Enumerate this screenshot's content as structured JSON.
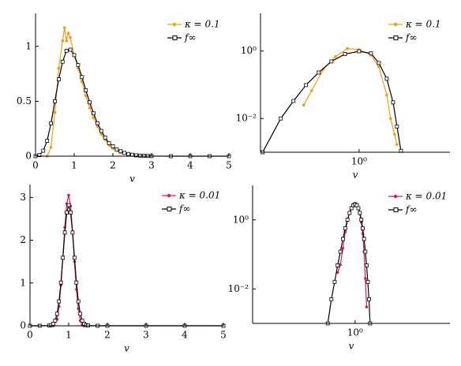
{
  "chart_data": [
    {
      "type": "line",
      "xlabel": "v",
      "xlim": [
        0,
        5
      ],
      "ylim": [
        0,
        1.3
      ],
      "xticks": [
        0,
        1,
        2,
        3,
        4,
        5
      ],
      "yticks": [
        0,
        0.5,
        1
      ],
      "legend": "upper right",
      "series": [
        {
          "name": "κ = 0.1",
          "color": "#f39c12",
          "marker": "o",
          "x": [
            0,
            0.3,
            0.4,
            0.5,
            0.6,
            0.7,
            0.75,
            0.8,
            0.85,
            0.9,
            1.0,
            1.1,
            1.2,
            1.3,
            1.4,
            1.5,
            1.6,
            1.7,
            1.8,
            1.9,
            2.0,
            2.2,
            2.4,
            2.6,
            2.8,
            3.0
          ],
          "values": [
            0,
            0,
            0.08,
            0.4,
            0.8,
            1.05,
            1.17,
            1.05,
            1.12,
            1.08,
            0.92,
            0.8,
            0.68,
            0.55,
            0.44,
            0.35,
            0.27,
            0.2,
            0.15,
            0.1,
            0.07,
            0.03,
            0.01,
            0.002,
            0,
            0
          ]
        },
        {
          "name": "f∞",
          "color": "#000000",
          "marker": "s",
          "x": [
            0,
            0.1,
            0.2,
            0.3,
            0.4,
            0.5,
            0.6,
            0.7,
            0.8,
            0.9,
            1.0,
            1.1,
            1.2,
            1.3,
            1.4,
            1.5,
            1.6,
            1.7,
            1.8,
            1.9,
            2.0,
            2.1,
            2.2,
            2.3,
            2.4,
            2.5,
            2.6,
            2.7,
            2.8,
            2.9,
            3.0,
            3.5,
            4,
            4.5,
            5
          ],
          "values": [
            0,
            0.01,
            0.05,
            0.14,
            0.3,
            0.5,
            0.7,
            0.86,
            0.96,
            0.97,
            0.92,
            0.83,
            0.72,
            0.6,
            0.49,
            0.39,
            0.3,
            0.23,
            0.17,
            0.12,
            0.09,
            0.06,
            0.045,
            0.03,
            0.02,
            0.013,
            0.008,
            0.005,
            0.003,
            0.002,
            0.001,
            0,
            0,
            0,
            0
          ]
        }
      ]
    },
    {
      "type": "line",
      "xlabel": "v",
      "xscale": "log",
      "yscale": "log",
      "xlim": [
        0.055,
        14.5
      ],
      "ylim": [
        0.001,
        13
      ],
      "xticks": [
        {
          "value": 1,
          "label": "10⁰"
        }
      ],
      "yticks": [
        {
          "value": 0.01,
          "label": "10⁻²"
        },
        {
          "value": 1,
          "label": "10⁰"
        }
      ],
      "legend": "upper right",
      "series": [
        {
          "name": "κ = 0.1",
          "color": "#f39c12",
          "marker": "o",
          "x": [
            0.196,
            0.248,
            0.35,
            0.5,
            0.71,
            1,
            1.42,
            1.79,
            2.26,
            2.53,
            2.84,
            3.05
          ],
          "values": [
            0.025,
            0.067,
            0.29,
            0.68,
            1.18,
            1.1,
            0.76,
            0.34,
            0.05,
            0.01,
            0.0034,
            0.0017
          ]
        },
        {
          "name": "f∞",
          "color": "#000000",
          "marker": "s",
          "x": [
            0.0586,
            0.1,
            0.145,
            0.21,
            0.305,
            0.443,
            0.66,
            1,
            1.42,
            1.79,
            2.26,
            2.72,
            3.05,
            3.43
          ],
          "values": [
            0.001,
            0.01,
            0.033,
            0.098,
            0.23,
            0.49,
            0.81,
            0.98,
            0.85,
            0.44,
            0.15,
            0.03,
            0.0058,
            0.0011
          ]
        }
      ]
    },
    {
      "type": "line",
      "xlabel": "v",
      "xlim": [
        0,
        5
      ],
      "ylim": [
        0,
        3.3
      ],
      "xticks": [
        0,
        1,
        2,
        3,
        4,
        5
      ],
      "yticks": [
        0,
        1,
        2,
        3
      ],
      "legend": "upper right",
      "series": [
        {
          "name": "κ = 0.01",
          "color": "#d81b50",
          "marker": "o",
          "x": [
            0,
            0.6,
            0.7,
            0.75,
            0.8,
            0.85,
            0.9,
            0.95,
            1.0,
            1.05,
            1.1,
            1.15,
            1.2,
            1.25,
            1.3,
            1.35,
            1.4,
            2,
            3,
            4,
            5
          ],
          "values": [
            0,
            0,
            0.15,
            0.45,
            0.95,
            1.6,
            2.3,
            2.85,
            3.05,
            2.8,
            2.2,
            1.5,
            0.85,
            0.4,
            0.12,
            0.02,
            0,
            0,
            0,
            0,
            0
          ]
        },
        {
          "name": "f∞",
          "color": "#000000",
          "marker": "s",
          "x": [
            0,
            0.25,
            0.5,
            0.55,
            0.6,
            0.65,
            0.7,
            0.75,
            0.8,
            0.85,
            0.9,
            0.95,
            1.0,
            1.05,
            1.1,
            1.15,
            1.2,
            1.25,
            1.3,
            1.35,
            1.4,
            1.45,
            1.5,
            1.75,
            2,
            3,
            4,
            5
          ],
          "values": [
            0,
            0,
            0.005,
            0.016,
            0.048,
            0.12,
            0.28,
            0.57,
            1.01,
            1.59,
            2.18,
            2.65,
            2.82,
            2.65,
            2.18,
            1.59,
            1.01,
            0.57,
            0.28,
            0.12,
            0.048,
            0.016,
            0.005,
            0,
            0,
            0,
            0,
            0
          ]
        }
      ]
    },
    {
      "type": "line",
      "xlabel": "v",
      "xscale": "log",
      "yscale": "log",
      "xlim": [
        0.05,
        16
      ],
      "ylim": [
        0.001,
        10
      ],
      "xticks": [
        {
          "value": 1,
          "label": "10⁰"
        }
      ],
      "yticks": [
        {
          "value": 0.01,
          "label": "10⁻²"
        },
        {
          "value": 1,
          "label": "10⁰"
        }
      ],
      "legend": "upper right",
      "series": [
        {
          "name": "κ = 0.01",
          "color": "#d81b50",
          "marker": "o",
          "x": [
            0.6,
            0.65,
            0.7,
            0.75,
            0.8,
            0.85,
            0.9,
            0.95,
            1.0,
            1.05,
            1.1,
            1.15,
            1.2,
            1.25,
            1.3,
            1.35,
            1.4
          ],
          "values": [
            0.03,
            0.05,
            0.15,
            0.45,
            0.95,
            1.6,
            2.3,
            2.85,
            3.05,
            2.8,
            2.2,
            1.5,
            0.85,
            0.4,
            0.12,
            0.02,
            0.003
          ]
        },
        {
          "name": "f∞",
          "color": "#000000",
          "marker": "s",
          "x": [
            0.45,
            0.5,
            0.55,
            0.6,
            0.65,
            0.7,
            0.75,
            0.8,
            0.85,
            0.9,
            0.95,
            1.0,
            1.05,
            1.1,
            1.15,
            1.2,
            1.25,
            1.3,
            1.35,
            1.4,
            1.45,
            1.5,
            1.55
          ],
          "values": [
            0.001,
            0.005,
            0.016,
            0.048,
            0.12,
            0.28,
            0.57,
            1.01,
            1.59,
            2.18,
            2.65,
            2.82,
            2.65,
            2.18,
            1.59,
            1.01,
            0.57,
            0.28,
            0.12,
            0.048,
            0.016,
            0.005,
            0.001
          ]
        }
      ]
    }
  ]
}
